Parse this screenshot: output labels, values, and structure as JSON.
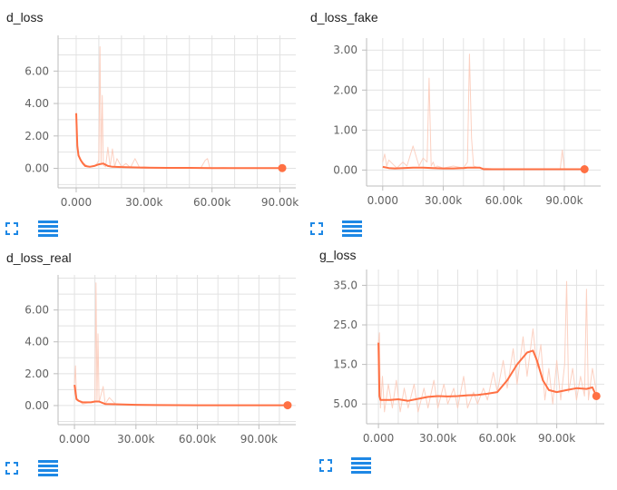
{
  "colors": {
    "raw": "#fbc6b3",
    "smooth": "#ff7043",
    "accent": "#1e88e5",
    "grid": "#e2e2e2"
  },
  "icons": {
    "fit": "fit-to-data-icon",
    "data": "data-table-icon"
  },
  "chart_data": [
    {
      "type": "line",
      "title": "d_loss",
      "xlim": [
        -8000,
        97000
      ],
      "ylim": [
        -1.2,
        8.2
      ],
      "xticks": [
        0,
        30000,
        60000,
        90000
      ],
      "xtick_labels": [
        "0.000",
        "30.00k",
        "60.00k",
        "90.00k"
      ],
      "yticks": [
        0,
        2,
        4,
        6
      ],
      "ytick_labels": [
        "0.00",
        "2.00",
        "4.00",
        "6.00"
      ],
      "grid": true,
      "series": [
        {
          "kind": "raw",
          "x": [
            0,
            500,
            1000,
            2000,
            3500,
            5000,
            7000,
            9000,
            10000,
            10500,
            11000,
            11500,
            12000,
            13000,
            14000,
            15000,
            16000,
            17000,
            18000,
            20000,
            22000,
            24000,
            26000,
            28000,
            30000,
            35000,
            40000,
            45000,
            50000,
            55000,
            57000,
            58000,
            59000,
            60000,
            65000,
            70000,
            75000,
            80000,
            85000,
            90000,
            91000
          ],
          "y": [
            3.4,
            1.5,
            0.9,
            0.5,
            0.3,
            0.15,
            0.1,
            0.25,
            0.5,
            7.5,
            0.3,
            4.5,
            0.2,
            0.1,
            1.3,
            0.1,
            1.2,
            0.1,
            0.6,
            0.1,
            0.3,
            0.05,
            0.6,
            0.05,
            0.1,
            0.02,
            0.05,
            0.02,
            0.05,
            0.02,
            0.5,
            0.6,
            0.05,
            0.02,
            0.04,
            0.02,
            0.03,
            0.02,
            0.02,
            0.02,
            0.02
          ]
        },
        {
          "kind": "smoothed",
          "x": [
            0,
            500,
            1000,
            2000,
            3000,
            4000,
            5000,
            6000,
            8000,
            10000,
            12000,
            14000,
            16000,
            20000,
            30000,
            40000,
            50000,
            60000,
            70000,
            80000,
            91000
          ],
          "y": [
            3.4,
            1.4,
            0.8,
            0.5,
            0.3,
            0.15,
            0.12,
            0.1,
            0.15,
            0.25,
            0.3,
            0.15,
            0.1,
            0.08,
            0.05,
            0.03,
            0.03,
            0.02,
            0.02,
            0.02,
            0.02
          ]
        }
      ]
    },
    {
      "type": "line",
      "title": "d_loss_fake",
      "xlim": [
        -8000,
        108000
      ],
      "ylim": [
        -0.4,
        3.3
      ],
      "xticks": [
        0,
        30000,
        60000,
        90000
      ],
      "xtick_labels": [
        "0.000",
        "30.00k",
        "60.00k",
        "90.00k"
      ],
      "yticks": [
        0,
        1,
        2,
        3
      ],
      "ytick_labels": [
        "0.00",
        "1.00",
        "2.00",
        "3.00"
      ],
      "grid": true,
      "series": [
        {
          "kind": "raw",
          "x": [
            0,
            1000,
            2000,
            3000,
            5000,
            7000,
            10000,
            12000,
            15000,
            18000,
            20000,
            22000,
            23000,
            24000,
            25000,
            26000,
            27000,
            30000,
            35000,
            40000,
            42000,
            43000,
            44000,
            45000,
            48000,
            50000,
            55000,
            60000,
            65000,
            70000,
            75000,
            80000,
            85000,
            88000,
            89000,
            90000,
            95000,
            100000
          ],
          "y": [
            0.2,
            0.4,
            0.1,
            0.25,
            0.15,
            0.05,
            0.2,
            0.1,
            0.6,
            0.1,
            0.3,
            0.2,
            2.3,
            0.1,
            0.2,
            0.05,
            0.1,
            0.05,
            0.1,
            0.05,
            0.2,
            2.9,
            0.8,
            0.1,
            0.05,
            0.05,
            0.03,
            0.03,
            0.03,
            0.03,
            0.03,
            0.03,
            0.03,
            0.03,
            0.5,
            0.03,
            0.03,
            0.03
          ]
        },
        {
          "kind": "smoothed",
          "x": [
            0,
            3000,
            6000,
            10000,
            15000,
            20000,
            25000,
            30000,
            35000,
            40000,
            42000,
            48000,
            50000,
            55000,
            60000,
            70000,
            80000,
            90000,
            100000
          ],
          "y": [
            0.08,
            0.05,
            0.04,
            0.05,
            0.06,
            0.06,
            0.05,
            0.04,
            0.04,
            0.05,
            0.06,
            0.06,
            0.02,
            0.02,
            0.02,
            0.02,
            0.02,
            0.02,
            0.02
          ]
        }
      ]
    },
    {
      "type": "line",
      "title": "d_loss_real",
      "xlim": [
        -8000,
        108000
      ],
      "ylim": [
        -1.2,
        8.2
      ],
      "xticks": [
        0,
        30000,
        60000,
        90000
      ],
      "xtick_labels": [
        "0.000",
        "30.00k",
        "60.00k",
        "90.00k"
      ],
      "yticks": [
        0,
        2,
        4,
        6
      ],
      "ytick_labels": [
        "0.00",
        "2.00",
        "4.00",
        "6.00"
      ],
      "grid": true,
      "series": [
        {
          "kind": "raw",
          "x": [
            0,
            500,
            1000,
            2000,
            4000,
            6000,
            8000,
            10000,
            10500,
            11000,
            11500,
            12000,
            14000,
            15000,
            17000,
            20000,
            25000,
            30000,
            40000,
            50000,
            60000,
            70000,
            80000,
            90000,
            100000,
            104000
          ],
          "y": [
            1.4,
            2.5,
            0.5,
            0.3,
            0.1,
            0.15,
            0.2,
            0.3,
            7.7,
            0.3,
            4.5,
            0.2,
            1.2,
            0.1,
            0.5,
            0.1,
            0.05,
            0.02,
            0.02,
            0.02,
            0.02,
            0.02,
            0.02,
            0.02,
            0.02,
            0.02
          ]
        },
        {
          "kind": "smoothed",
          "x": [
            0,
            1000,
            2000,
            4000,
            6000,
            8000,
            10000,
            12000,
            15000,
            20000,
            30000,
            40000,
            60000,
            80000,
            100000,
            104000
          ],
          "y": [
            1.3,
            0.4,
            0.3,
            0.2,
            0.2,
            0.2,
            0.25,
            0.25,
            0.1,
            0.08,
            0.05,
            0.03,
            0.02,
            0.02,
            0.02,
            0.02
          ]
        }
      ]
    },
    {
      "type": "line",
      "title": "g_loss",
      "xlim": [
        -6000,
        114000
      ],
      "ylim": [
        0,
        39
      ],
      "xticks": [
        0,
        30000,
        60000,
        90000
      ],
      "xtick_labels": [
        "0.000",
        "30.00k",
        "60.00k",
        "90.00k"
      ],
      "yticks": [
        5,
        15,
        25,
        35
      ],
      "ytick_labels": [
        "5.00",
        "15.0",
        "25.0",
        "35.0"
      ],
      "grid": true,
      "series": [
        {
          "kind": "raw",
          "x": [
            0,
            500,
            1000,
            2000,
            3000,
            5000,
            7000,
            9000,
            11000,
            13000,
            15000,
            18000,
            20000,
            23000,
            25000,
            28000,
            30000,
            33000,
            35000,
            38000,
            40000,
            43000,
            45000,
            48000,
            50000,
            53000,
            55000,
            58000,
            60000,
            63000,
            65000,
            68000,
            70000,
            73000,
            75000,
            78000,
            80000,
            82000,
            84000,
            86000,
            88000,
            90000,
            92000,
            94000,
            95000,
            96000,
            98000,
            100000,
            102000,
            104000,
            105000,
            106000,
            108000,
            110000
          ],
          "y": [
            20.5,
            23,
            4,
            12,
            3,
            10,
            4,
            11,
            3,
            9,
            4,
            10,
            3,
            9,
            4,
            11,
            4,
            10,
            5,
            9,
            4,
            12,
            4,
            8,
            5,
            9,
            6,
            13,
            8,
            16,
            9,
            19,
            10,
            22,
            12,
            24,
            14,
            20,
            6,
            14,
            5,
            16,
            6,
            15,
            36,
            8,
            14,
            6,
            12,
            7,
            34,
            6,
            14,
            8
          ]
        },
        {
          "kind": "smoothed",
          "x": [
            0,
            500,
            1000,
            3000,
            6000,
            10000,
            15000,
            20000,
            25000,
            30000,
            35000,
            40000,
            45000,
            50000,
            55000,
            60000,
            65000,
            70000,
            75000,
            78000,
            80000,
            83000,
            86000,
            90000,
            95000,
            100000,
            105000,
            108000,
            110000
          ],
          "y": [
            20.5,
            7,
            6,
            6,
            6,
            6.2,
            5.8,
            6.3,
            6.8,
            7,
            6.9,
            7,
            7.2,
            7.3,
            7.6,
            8,
            11,
            15,
            18,
            18.5,
            16,
            11,
            8.5,
            8,
            8.5,
            9,
            8.8,
            9.2,
            7
          ]
        }
      ]
    }
  ]
}
